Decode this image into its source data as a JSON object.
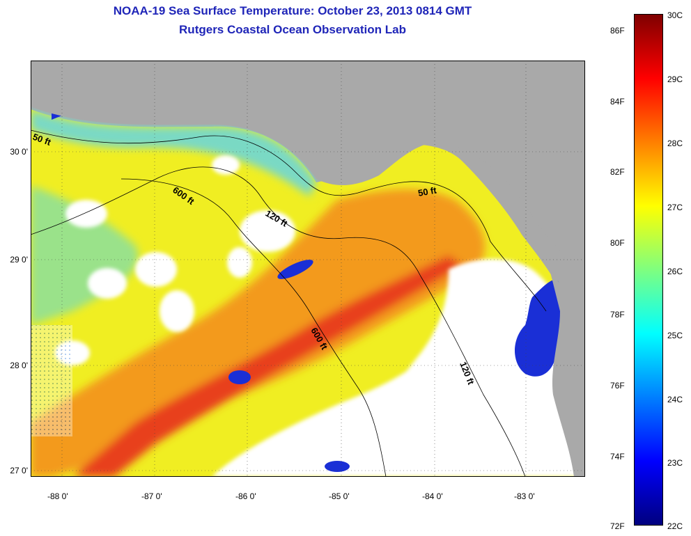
{
  "title": {
    "line1": "NOAA-19 Sea Surface Temperature:  October 23, 2013 0814 GMT",
    "line2": "Rutgers Coastal Ocean Observation Lab"
  },
  "axes": {
    "lat_labels": [
      "30 0'",
      "29 0'",
      "28 0'",
      "27 0'"
    ],
    "lon_labels": [
      "-88 0'",
      "-87 0'",
      "-86 0'",
      "-85 0'",
      "-84 0'",
      "-83 0'"
    ]
  },
  "contours": {
    "labels": [
      "50 ft",
      "600 ft",
      "120 ft",
      "50 ft",
      "600 ft",
      "120 ft"
    ]
  },
  "colorbar": {
    "fahrenheit": [
      "86F",
      "84F",
      "82F",
      "80F",
      "78F",
      "76F",
      "74F",
      "72F"
    ],
    "celsius": [
      "30C",
      "29C",
      "28C",
      "27C",
      "26C",
      "25C",
      "24C",
      "23C",
      "22C"
    ],
    "colors": [
      "#00007f",
      "#0000ff",
      "#007fff",
      "#00ffff",
      "#7fff7f",
      "#ffff00",
      "#ff7f00",
      "#ff0000",
      "#7f0000"
    ]
  },
  "map_colors": {
    "land": "#a9a9a9",
    "cloud": "#ffffff"
  }
}
